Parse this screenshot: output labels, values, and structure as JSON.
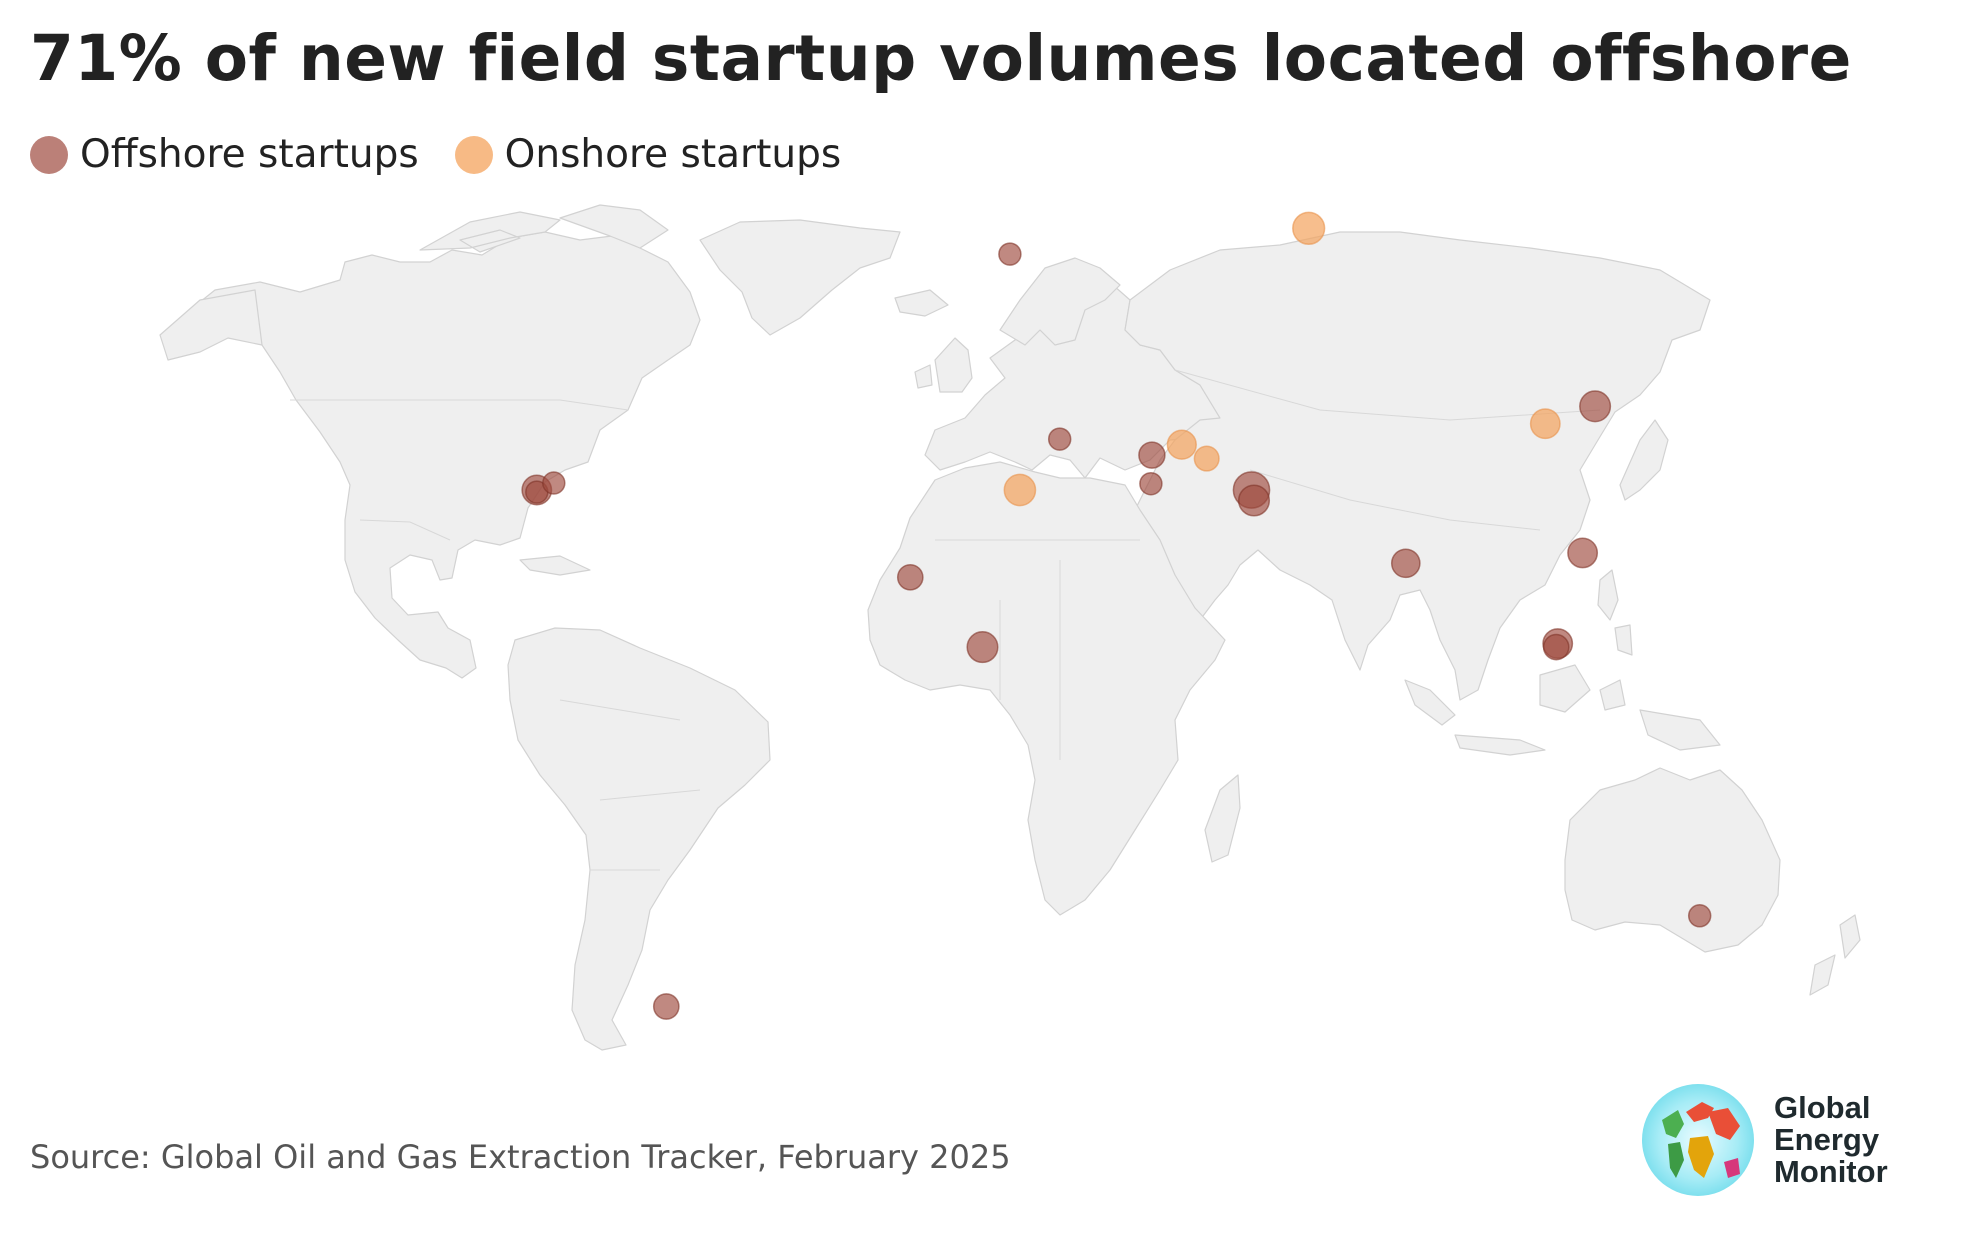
{
  "title": "71% of new field startup volumes located offshore",
  "legend": [
    {
      "label": "Offshore startups",
      "color": "#9e4a3e"
    },
    {
      "label": "Onshore startups",
      "color": "#f4a35c"
    }
  ],
  "source": "Source: Global Oil and Gas Extraction Tracker, February 2025",
  "logo": {
    "lines": [
      "Global",
      "Energy",
      "Monitor"
    ]
  },
  "map": {
    "projection": "equirectangular",
    "land_color": "#efefef",
    "border_color": "#d4d4d4",
    "startups": [
      {
        "type": "offshore",
        "region": "North Sea",
        "lon": 3.0,
        "lat": 60.3,
        "size": 1
      },
      {
        "type": "offshore",
        "region": "Gulf of Mexico",
        "lon": -92.0,
        "lat": 26.5,
        "size": 2
      },
      {
        "type": "offshore",
        "region": "Gulf of Mexico",
        "lon": -92.0,
        "lat": 26.2,
        "size": 1
      },
      {
        "type": "offshore",
        "region": "Gulf of Mexico east",
        "lon": -88.6,
        "lat": 27.5,
        "size": 1
      },
      {
        "type": "offshore",
        "region": "Mediterranean",
        "lon": 13.0,
        "lat": 33.8,
        "size": 1
      },
      {
        "type": "offshore",
        "region": "East Mediterranean",
        "lon": 31.5,
        "lat": 31.5,
        "size": 1.5
      },
      {
        "type": "offshore",
        "region": "Nile Delta",
        "lon": 31.3,
        "lat": 27.4,
        "size": 1
      },
      {
        "type": "offshore",
        "region": "Persian Gulf",
        "lon": 51.5,
        "lat": 26.5,
        "size": 3.2
      },
      {
        "type": "offshore",
        "region": "Persian Gulf",
        "lon": 52.0,
        "lat": 25.0,
        "size": 2.2
      },
      {
        "type": "offshore",
        "region": "Senegal",
        "lon": -17.0,
        "lat": 14.0,
        "size": 1.4
      },
      {
        "type": "offshore",
        "region": "Gulf of Guinea",
        "lon": -2.5,
        "lat": 4.0,
        "size": 2.2
      },
      {
        "type": "offshore",
        "region": "Bay of Bengal",
        "lon": 82.5,
        "lat": 16.0,
        "size": 1.8
      },
      {
        "type": "offshore",
        "region": "Bohai Bay",
        "lon": 120.5,
        "lat": 38.5,
        "size": 2.2
      },
      {
        "type": "offshore",
        "region": "South China Sea",
        "lon": 118.0,
        "lat": 17.5,
        "size": 2
      },
      {
        "type": "offshore",
        "region": "Sarawak",
        "lon": 113.0,
        "lat": 4.5,
        "size": 2
      },
      {
        "type": "offshore",
        "region": "Sarawak",
        "lon": 112.7,
        "lat": 4.0,
        "size": 1.4
      },
      {
        "type": "offshore",
        "region": "Bass Strait",
        "lon": 141.5,
        "lat": -34.5,
        "size": 1
      },
      {
        "type": "offshore",
        "region": "Tierra del Fuego",
        "lon": -66.0,
        "lat": -47.5,
        "size": 1.4
      },
      {
        "type": "onshore",
        "region": "Western Siberia",
        "lon": 63.0,
        "lat": 64.0,
        "size": 2.4
      },
      {
        "type": "onshore",
        "region": "China",
        "lon": 110.5,
        "lat": 36.0,
        "size": 2
      },
      {
        "type": "onshore",
        "region": "Algeria",
        "lon": 5.0,
        "lat": 26.5,
        "size": 2.3
      },
      {
        "type": "onshore",
        "region": "Iraq",
        "lon": 37.5,
        "lat": 33.0,
        "size": 1.9
      },
      {
        "type": "onshore",
        "region": "Iraq south",
        "lon": 42.5,
        "lat": 31.0,
        "size": 1.3
      }
    ]
  }
}
